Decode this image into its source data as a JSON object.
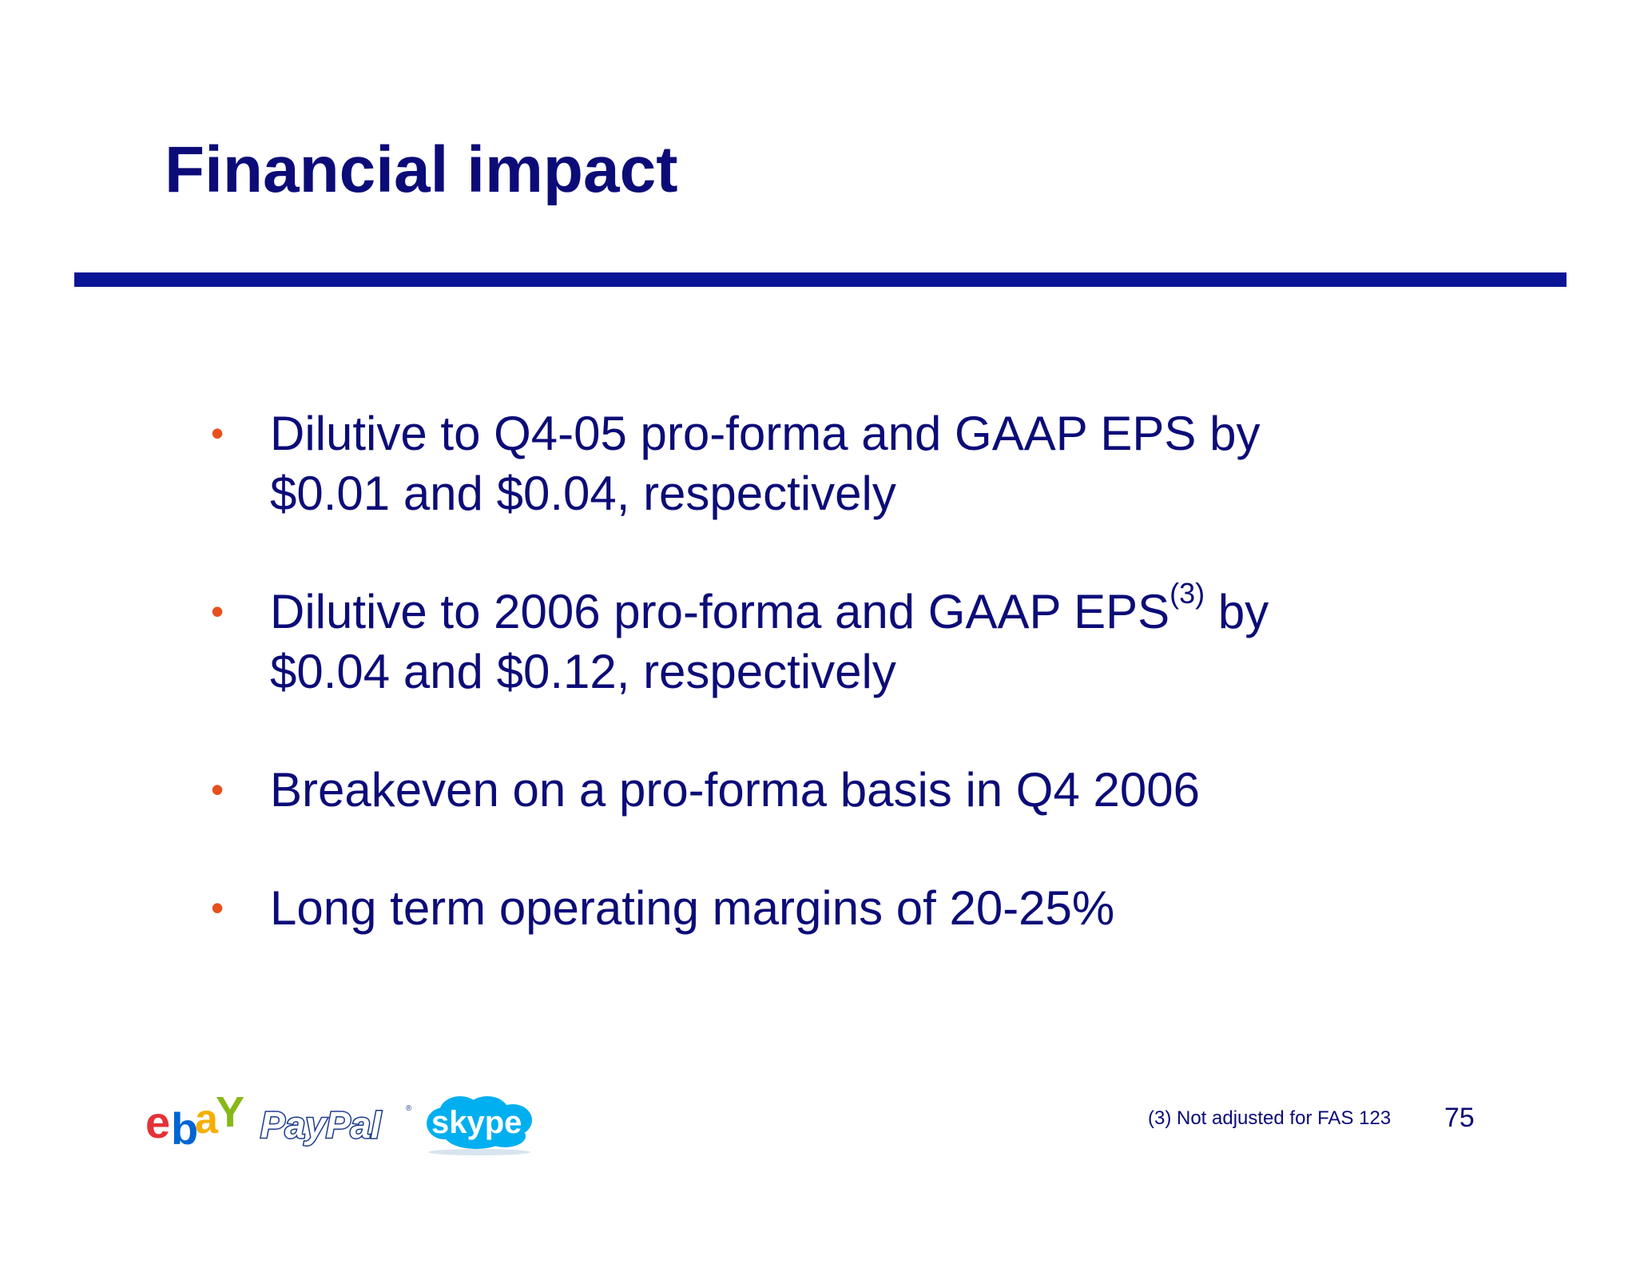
{
  "slide": {
    "title": "Financial impact",
    "bullets": [
      {
        "line1": "Dilutive to Q4-05 pro-forma and GAAP EPS by",
        "line2": "$0.01 and $0.04, respectively"
      },
      {
        "line1_pre": "Dilutive to 2006 pro-forma and GAAP EPS",
        "line1_sup": "(3)",
        "line1_post": " by",
        "line2": "$0.04 and $0.12, respectively"
      },
      {
        "line1": "Breakeven on a pro-forma basis in Q4 2006"
      },
      {
        "line1": "Long term operating margins of 20-25%"
      }
    ],
    "bullet_glyph": "•",
    "footnote": "(3) Not adjusted for FAS 123",
    "page_number": "75"
  },
  "logos": {
    "ebay": "ebay",
    "paypal": "PayPal",
    "skype": "skype"
  },
  "colors": {
    "title": "#0c0c78",
    "rule": "#0a1496",
    "bullet": "#e8501e",
    "ebay_e": "#e53238",
    "ebay_b": "#0064d2",
    "ebay_a": "#f5af02",
    "ebay_y": "#86b817",
    "paypal": "#1b3a8c",
    "skype": "#00aff0"
  }
}
